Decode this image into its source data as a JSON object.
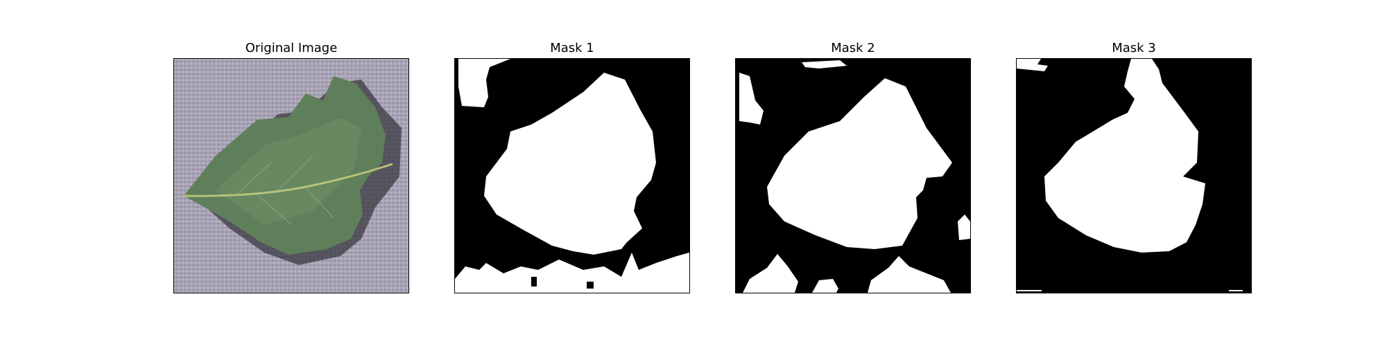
{
  "figure": {
    "panels": [
      {
        "title": "Original Image"
      },
      {
        "title": "Mask 1"
      },
      {
        "title": "Mask 2"
      },
      {
        "title": "Mask 3"
      }
    ]
  },
  "colors": {
    "background_fabric": "#a8a3b5",
    "leaf": "#5f7f5a",
    "leaf_vein": "#b9c27a",
    "mask_bg": "#000000",
    "mask_fg": "#ffffff"
  }
}
